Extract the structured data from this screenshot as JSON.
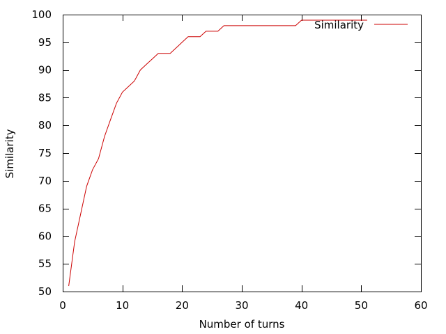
{
  "chart_data": {
    "type": "line",
    "title": "",
    "xlabel": "Number of turns",
    "ylabel": "Similarity",
    "xlim": [
      0,
      60
    ],
    "ylim": [
      50,
      100
    ],
    "xticks": [
      0,
      10,
      20,
      30,
      40,
      50,
      60
    ],
    "yticks": [
      50,
      55,
      60,
      65,
      70,
      75,
      80,
      85,
      90,
      95,
      100
    ],
    "grid": false,
    "legend_position": "top-right",
    "series": [
      {
        "name": "Similarity",
        "color": "#cc0000",
        "x": [
          1,
          2,
          3,
          4,
          5,
          6,
          7,
          8,
          9,
          10,
          11,
          12,
          13,
          14,
          15,
          16,
          17,
          18,
          19,
          20,
          21,
          22,
          23,
          24,
          25,
          26,
          27,
          28,
          29,
          30,
          31,
          32,
          33,
          34,
          35,
          36,
          37,
          38,
          39,
          40,
          41,
          42,
          43,
          44,
          45,
          46,
          47,
          48,
          49,
          50,
          51
        ],
        "y": [
          51,
          59,
          64,
          69,
          72,
          74,
          78,
          81,
          84,
          86,
          87,
          88,
          90,
          91,
          92,
          93,
          93,
          93,
          94,
          95,
          96,
          96,
          96,
          97,
          97,
          97,
          98,
          98,
          98,
          98,
          98,
          98,
          98,
          98,
          98,
          98,
          98,
          98,
          98,
          99,
          99,
          99,
          99,
          99,
          99,
          99,
          99,
          99,
          99,
          99,
          99
        ]
      }
    ]
  }
}
